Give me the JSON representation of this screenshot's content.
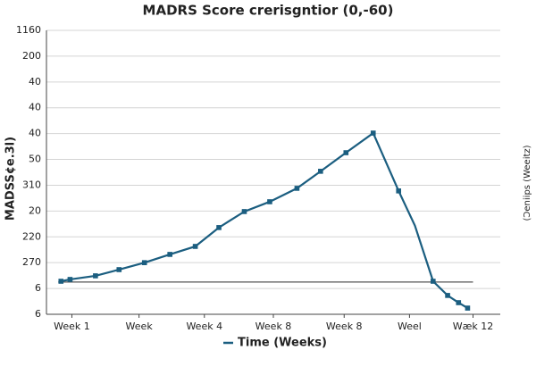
{
  "chart_data": {
    "type": "line",
    "title": "MADRS Score crerisgntior (0,-60)",
    "y_label": "MADSS¢e.3l)",
    "y2_label": "(Ɔeniips (Weeitz)",
    "x": [
      0.8,
      1.3,
      2.7,
      4.0,
      5.4,
      6.8,
      8.2,
      9.5,
      10.9,
      12.3,
      13.8,
      15.1,
      16.5,
      18.0,
      19.4,
      20.3,
      21.3,
      22.1,
      22.7,
      23.2
    ],
    "series": [
      {
        "name": "Time (Weeks)",
        "color": "#1b5e80",
        "values": [
          1.28,
          1.35,
          1.49,
          1.73,
          2.0,
          2.32,
          2.63,
          3.36,
          3.98,
          4.36,
          4.88,
          5.54,
          6.26,
          7.02,
          4.78,
          3.43,
          1.28,
          0.73,
          0.45,
          0.24
        ],
        "markers": [
          true,
          true,
          true,
          true,
          true,
          true,
          true,
          true,
          true,
          true,
          true,
          true,
          true,
          true,
          true,
          false,
          true,
          true,
          true,
          true
        ]
      }
    ],
    "xlim": [
      0,
      25
    ],
    "xticks": [
      1.4,
      5.1,
      8.7,
      12.5,
      16.4,
      20.0,
      23.5
    ],
    "xtick_labels": [
      "Week 1",
      "Week",
      "Week 4",
      "Week  8",
      "Week 8",
      "Weel",
      "Wæk 12"
    ],
    "ylim": [
      0,
      11
    ],
    "yticks": [
      0,
      1,
      2,
      3,
      4,
      5,
      6,
      7,
      8,
      9,
      10,
      11
    ],
    "ytick_labels": [
      "6",
      "6",
      "270",
      "220",
      "20",
      "310",
      "50",
      "40",
      "40",
      "40",
      "200",
      "1160"
    ],
    "reference_line": {
      "y": 1.25,
      "x": [
        0.65,
        23.5
      ],
      "color": "#555555"
    },
    "grid": true
  }
}
